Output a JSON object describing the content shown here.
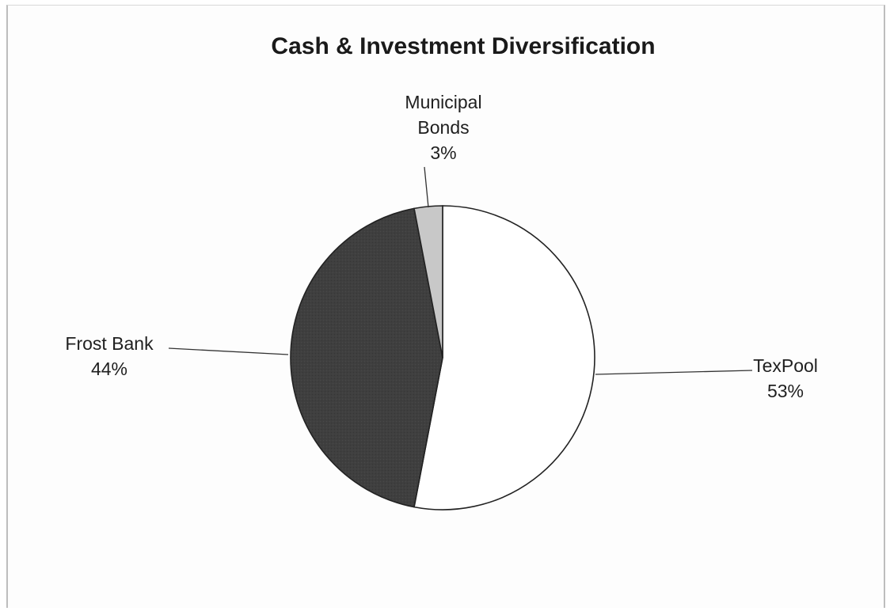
{
  "chart_data": {
    "type": "pie",
    "title": "Cash & Investment Diversification",
    "slices": [
      {
        "label": "TexPool",
        "value": 53,
        "value_label": "53%",
        "color": "#ffffff"
      },
      {
        "label": "Frost Bank",
        "value": 44,
        "value_label": "44%",
        "color": "#3f3f3f"
      },
      {
        "label": "Municipal Bonds",
        "value": 3,
        "value_label": "3%",
        "color": "#c8c8c8"
      }
    ],
    "legend": "none",
    "labels": "outside with leader lines"
  }
}
